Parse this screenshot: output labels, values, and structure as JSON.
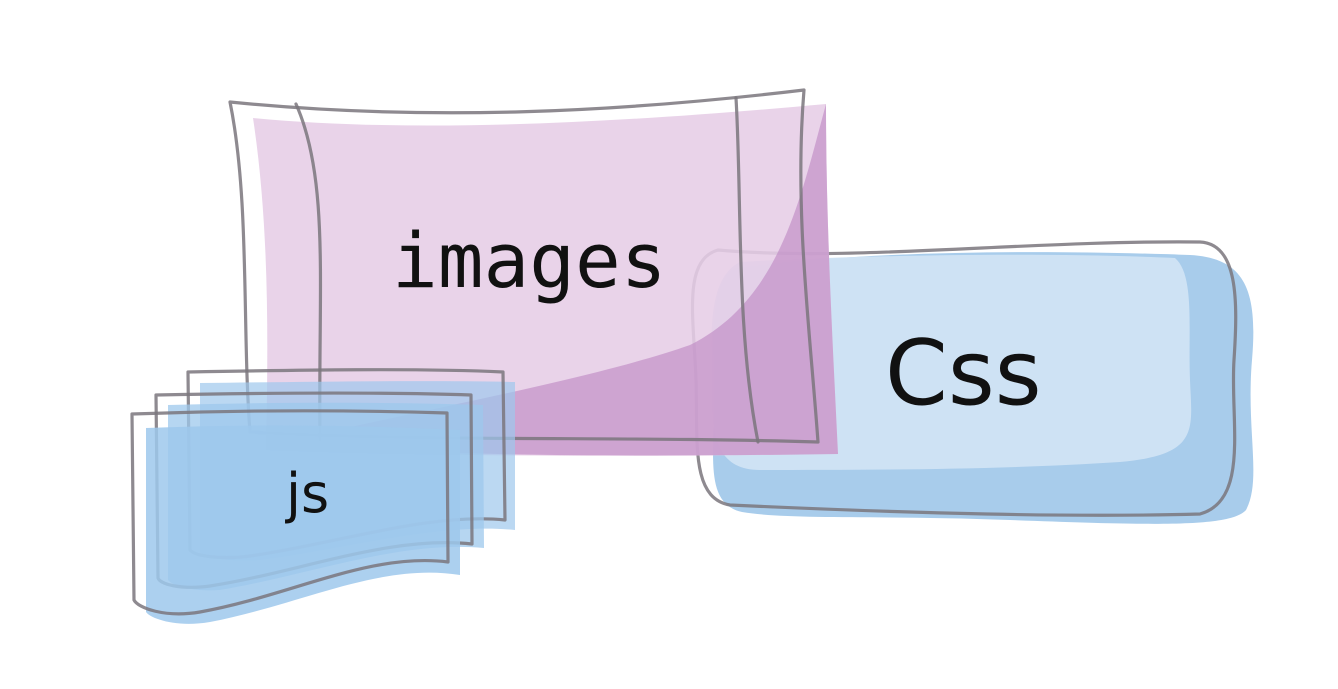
{
  "diagram": {
    "nodes": {
      "images": {
        "label": "images",
        "color": "#c77fbf"
      },
      "css": {
        "label": "Css",
        "color": "#8fbde6"
      },
      "js": {
        "label": "js",
        "color": "#8fbde6"
      }
    },
    "colors": {
      "outline": "#7a767c",
      "images_fill_light": "#e6cde6",
      "images_fill_dark": "#cca5cf",
      "css_fill_light": "#d0e3f4",
      "css_fill_dark": "#a3c9ea",
      "js_fill": "#9ec8ec"
    }
  }
}
